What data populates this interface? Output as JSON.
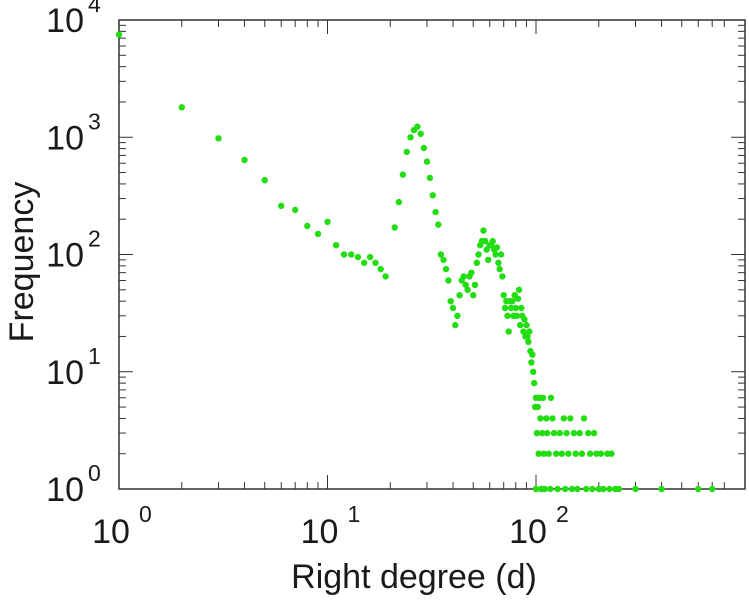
{
  "chart_data": {
    "type": "scatter",
    "xlabel": "Right degree (d)",
    "ylabel": "Frequency",
    "x_scale": "log",
    "y_scale": "log",
    "xlim": [
      1,
      850
    ],
    "ylim": [
      1,
      10000
    ],
    "grid": false,
    "colors": {
      "points": "#22dd11",
      "axis": "#333333"
    },
    "x_ticks": [
      {
        "base": "10",
        "exp": "0",
        "value": 1
      },
      {
        "base": "10",
        "exp": "1",
        "value": 10
      },
      {
        "base": "10",
        "exp": "2",
        "value": 100
      }
    ],
    "y_ticks": [
      {
        "base": "10",
        "exp": "0",
        "value": 1
      },
      {
        "base": "10",
        "exp": "1",
        "value": 10
      },
      {
        "base": "10",
        "exp": "2",
        "value": 100
      },
      {
        "base": "10",
        "exp": "3",
        "value": 1000
      },
      {
        "base": "10",
        "exp": "4",
        "value": 10000
      }
    ],
    "points": [
      [
        1,
        7500
      ],
      [
        2,
        1800
      ],
      [
        3,
        980
      ],
      [
        4,
        640
      ],
      [
        5,
        430
      ],
      [
        6,
        260
      ],
      [
        7,
        240
      ],
      [
        8,
        175
      ],
      [
        9,
        150
      ],
      [
        10,
        190
      ],
      [
        11,
        120
      ],
      [
        12,
        100
      ],
      [
        13,
        100
      ],
      [
        14,
        95
      ],
      [
        15,
        85
      ],
      [
        16,
        95
      ],
      [
        17,
        85
      ],
      [
        18,
        75
      ],
      [
        19,
        65
      ],
      [
        21,
        170
      ],
      [
        22,
        280
      ],
      [
        23,
        480
      ],
      [
        24,
        750
      ],
      [
        25,
        1000
      ],
      [
        26,
        1150
      ],
      [
        27,
        1230
      ],
      [
        28,
        1070
      ],
      [
        29,
        810
      ],
      [
        30,
        620
      ],
      [
        31,
        450
      ],
      [
        32,
        320
      ],
      [
        33,
        230
      ],
      [
        34,
        180
      ],
      [
        35,
        100
      ],
      [
        36,
        90
      ],
      [
        37,
        75
      ],
      [
        38,
        60
      ],
      [
        39,
        40
      ],
      [
        40,
        35
      ],
      [
        41,
        25
      ],
      [
        42,
        30
      ],
      [
        43,
        45
      ],
      [
        44,
        60
      ],
      [
        45,
        65
      ],
      [
        46,
        55
      ],
      [
        47,
        50
      ],
      [
        48,
        65
      ],
      [
        49,
        70
      ],
      [
        50,
        45
      ],
      [
        51,
        55
      ],
      [
        52,
        85
      ],
      [
        53,
        100
      ],
      [
        54,
        120
      ],
      [
        55,
        130
      ],
      [
        56,
        160
      ],
      [
        57,
        130
      ],
      [
        58,
        110
      ],
      [
        59,
        90
      ],
      [
        60,
        120
      ],
      [
        61,
        120
      ],
      [
        62,
        130
      ],
      [
        63,
        110
      ],
      [
        64,
        100
      ],
      [
        65,
        115
      ],
      [
        66,
        85
      ],
      [
        67,
        75
      ],
      [
        68,
        100
      ],
      [
        69,
        65
      ],
      [
        70,
        45
      ],
      [
        71,
        35
      ],
      [
        72,
        40
      ],
      [
        73,
        30
      ],
      [
        74,
        22
      ],
      [
        75,
        40
      ],
      [
        76,
        35
      ],
      [
        77,
        40
      ],
      [
        78,
        30
      ],
      [
        79,
        45
      ],
      [
        80,
        35
      ],
      [
        81,
        30
      ],
      [
        82,
        42
      ],
      [
        83,
        50
      ],
      [
        84,
        25
      ],
      [
        85,
        35
      ],
      [
        86,
        30
      ],
      [
        87,
        22
      ],
      [
        88,
        28
      ],
      [
        89,
        20
      ],
      [
        90,
        25
      ],
      [
        91,
        20
      ],
      [
        92,
        18
      ],
      [
        93,
        22
      ],
      [
        94,
        15
      ],
      [
        95,
        12
      ],
      [
        96,
        14
      ],
      [
        97,
        10
      ],
      [
        98,
        8
      ],
      [
        99,
        5
      ],
      [
        100,
        6
      ],
      [
        100,
        1
      ],
      [
        101,
        3
      ],
      [
        102,
        5
      ],
      [
        103,
        2
      ],
      [
        104,
        6
      ],
      [
        105,
        4
      ],
      [
        106,
        1
      ],
      [
        107,
        3
      ],
      [
        108,
        6
      ],
      [
        109,
        2
      ],
      [
        110,
        1
      ],
      [
        112,
        4
      ],
      [
        113,
        3
      ],
      [
        115,
        2
      ],
      [
        117,
        1
      ],
      [
        118,
        6
      ],
      [
        120,
        4
      ],
      [
        122,
        3
      ],
      [
        125,
        2
      ],
      [
        127,
        1
      ],
      [
        130,
        3
      ],
      [
        133,
        2
      ],
      [
        136,
        4
      ],
      [
        138,
        1
      ],
      [
        140,
        3
      ],
      [
        143,
        2
      ],
      [
        146,
        4
      ],
      [
        149,
        1
      ],
      [
        152,
        3
      ],
      [
        155,
        2
      ],
      [
        158,
        1
      ],
      [
        162,
        3
      ],
      [
        166,
        2
      ],
      [
        170,
        4
      ],
      [
        174,
        1
      ],
      [
        178,
        3
      ],
      [
        182,
        2
      ],
      [
        186,
        1
      ],
      [
        190,
        3
      ],
      [
        195,
        2
      ],
      [
        200,
        1
      ],
      [
        205,
        2
      ],
      [
        210,
        1
      ],
      [
        220,
        2
      ],
      [
        225,
        1
      ],
      [
        230,
        2
      ],
      [
        240,
        1
      ],
      [
        250,
        1
      ],
      [
        300,
        1
      ],
      [
        400,
        1
      ],
      [
        600,
        1
      ],
      [
        700,
        1
      ]
    ]
  }
}
